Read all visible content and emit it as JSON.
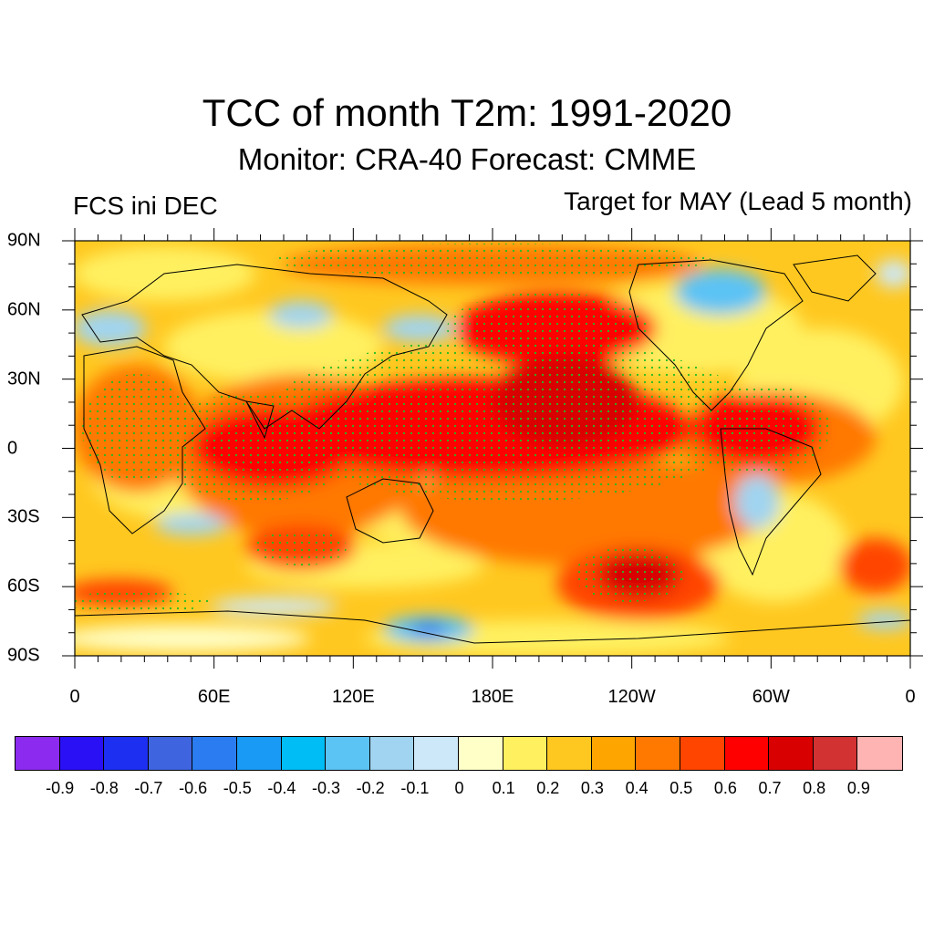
{
  "header": {
    "title": "TCC of month T2m: 1991-2020",
    "subtitle": "Monitor: CRA-40   Forecast: CMME",
    "left_label": "FCS ini DEC",
    "right_label": "Target for MAY (Lead 5 month)"
  },
  "axes": {
    "lat_labels": [
      "90N",
      "60N",
      "30N",
      "0",
      "30S",
      "60S",
      "90S"
    ],
    "lon_labels": [
      "0",
      "60E",
      "120E",
      "180E",
      "120W",
      "60W",
      "0"
    ]
  },
  "colorbar": {
    "colors": [
      "#8c2bef",
      "#2a10f5",
      "#1d2ff0",
      "#3f64e0",
      "#2a7cf0",
      "#199af5",
      "#00bdf5",
      "#5cc3f5",
      "#a0d4f0",
      "#cde8f8",
      "#ffffc8",
      "#fff060",
      "#ffc820",
      "#ffa500",
      "#ff7800",
      "#ff4500",
      "#ff0000",
      "#d80000",
      "#d23232",
      "#ffb4b4"
    ],
    "labels": [
      "-0.9",
      "-0.8",
      "-0.7",
      "-0.6",
      "-0.5",
      "-0.4",
      "-0.3",
      "-0.2",
      "-0.1",
      "0",
      "0.1",
      "0.2",
      "0.3",
      "0.4",
      "0.5",
      "0.6",
      "0.7",
      "0.8",
      "0.9"
    ]
  },
  "map": {
    "description_regions": [
      {
        "name": "tropical-pacific",
        "level": 0.7
      },
      {
        "name": "indian-ocean",
        "level": 0.6
      },
      {
        "name": "north-pacific",
        "level": 0.6
      },
      {
        "name": "southern-pacific",
        "level": 0.5
      },
      {
        "name": "antarctic-ross-sea",
        "level": -0.4
      }
    ],
    "stipple_color": "#22bb22"
  }
}
